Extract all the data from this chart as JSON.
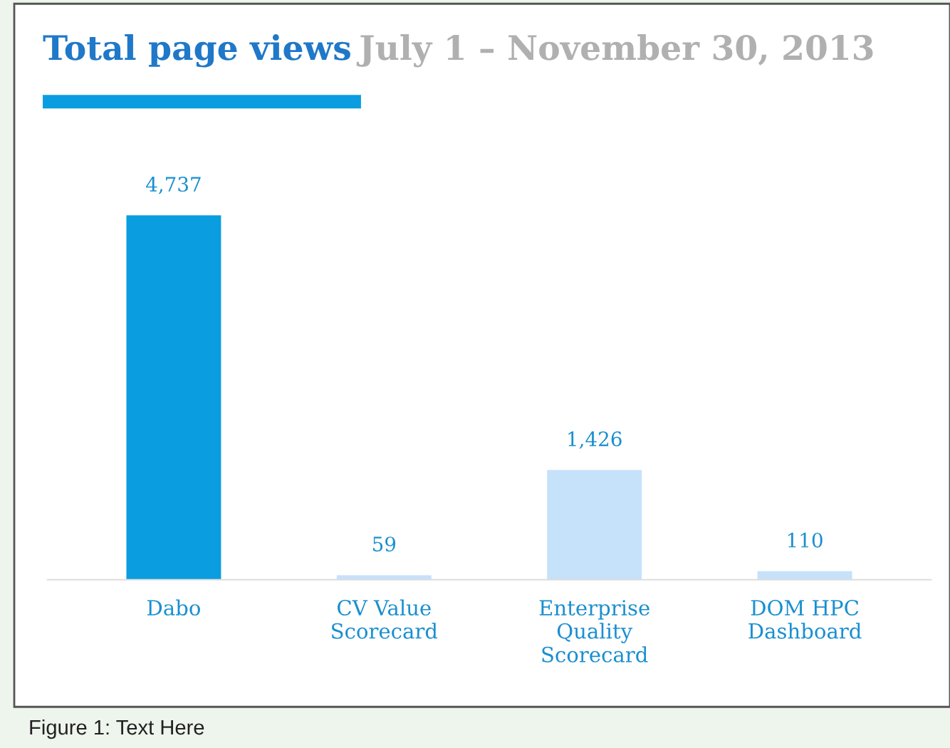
{
  "chart_data": {
    "type": "bar",
    "title": "Total page views",
    "subtitle": "July 1 – November 30, 2013",
    "categories": [
      "Dabo",
      "CV Value\nScorecard",
      "Enterprise\nQuality\nScorecard",
      "DOM HPC\nDashboard"
    ],
    "values": [
      4737,
      59,
      1426,
      110
    ],
    "colors": [
      "#0a9de0",
      "#c6e1fa",
      "#c6e1fa",
      "#c6e1fa"
    ],
    "value_labels": [
      "4,737",
      "59",
      "1,426",
      "110"
    ],
    "annotations": [
      "Figure 1: Text Here"
    ]
  }
}
